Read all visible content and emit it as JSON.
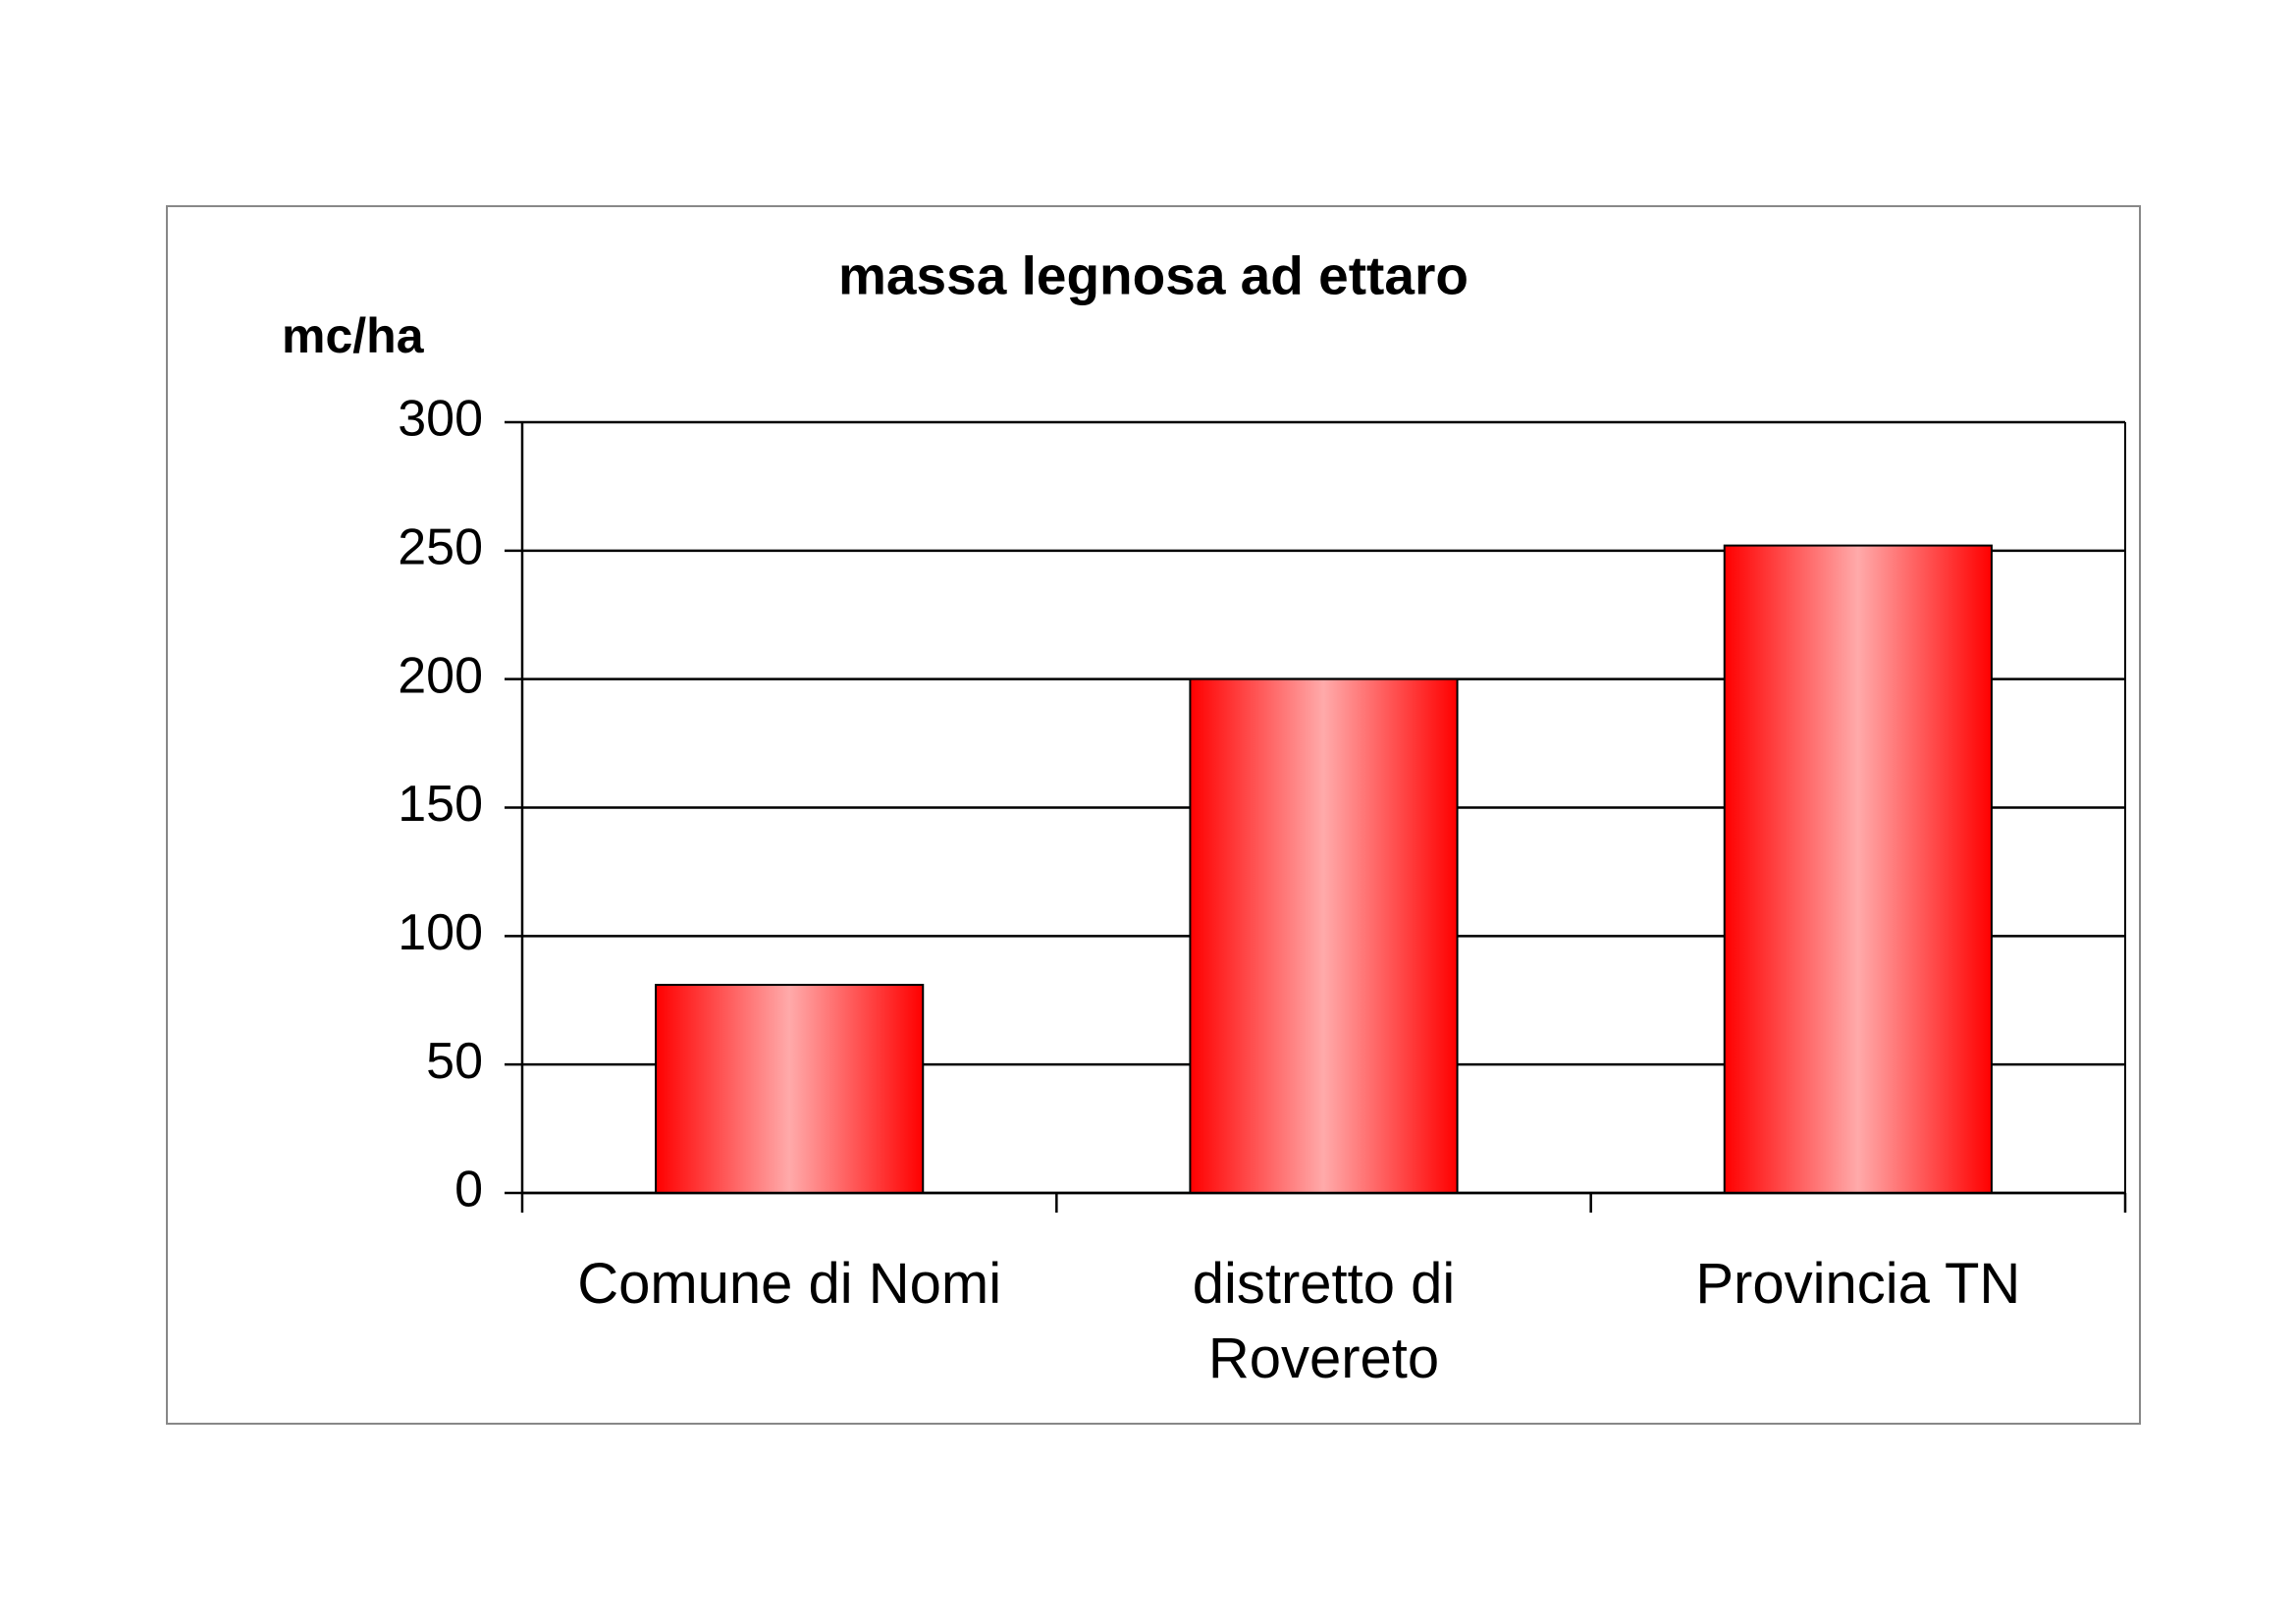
{
  "chart_data": {
    "type": "bar",
    "title": "massa legnosa ad ettaro",
    "y_label": "mc/ha",
    "categories": [
      "Comune di Nomi",
      "distretto di Rovereto",
      "Provincia TN"
    ],
    "values": [
      81,
      200,
      252
    ],
    "color": "#ff0000",
    "ylim": [
      0,
      300
    ],
    "yticks": [
      0,
      50,
      100,
      150,
      200,
      250,
      300
    ],
    "grid": true
  }
}
